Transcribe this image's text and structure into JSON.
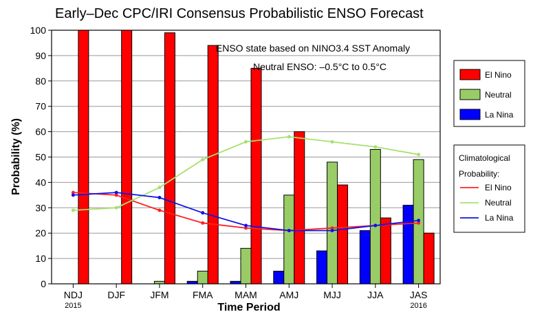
{
  "chart_data": {
    "type": "bar",
    "title": "Early–Dec CPC/IRI Consensus Probabilistic ENSO Forecast",
    "xlabel": "Time Period",
    "ylabel": "Probability (%)",
    "ylim": [
      0,
      100
    ],
    "yticks": [
      0,
      10,
      20,
      30,
      40,
      50,
      60,
      70,
      80,
      90,
      100
    ],
    "categories": [
      "NDJ",
      "DJF",
      "JFM",
      "FMA",
      "MAM",
      "AMJ",
      "MJJ",
      "JJA",
      "JAS"
    ],
    "year_labels": {
      "start": "2015",
      "end": "2016"
    },
    "annotation_line1": "ENSO state based on NINO3.4 SST Anomaly",
    "annotation_line2": "Neutral ENSO: –0.5°C to 0.5°C",
    "series": [
      {
        "name": "La Nina",
        "color": "#0000ff",
        "values": [
          0,
          0,
          0,
          1,
          1,
          5,
          13,
          21,
          31
        ]
      },
      {
        "name": "Neutral",
        "color": "#99cc66",
        "values": [
          0,
          0,
          1,
          5,
          14,
          35,
          48,
          53,
          49
        ]
      },
      {
        "name": "El Nino",
        "color": "#ff0000",
        "values": [
          100,
          100,
          99,
          94,
          85,
          60,
          39,
          26,
          20
        ]
      }
    ],
    "climatology": {
      "title_line1": "Climatological",
      "title_line2": "Probability:",
      "series": [
        {
          "name": "El Nino",
          "color": "#ff2020",
          "values": [
            36,
            35,
            29,
            24,
            22,
            21,
            22,
            23,
            24
          ]
        },
        {
          "name": "Neutral",
          "color": "#a8e070",
          "values": [
            29,
            30,
            38,
            49,
            56,
            58,
            56,
            54,
            51
          ]
        },
        {
          "name": "La Nina",
          "color": "#1010ee",
          "values": [
            35,
            36,
            34,
            28,
            23,
            21,
            21,
            23,
            25
          ]
        }
      ]
    },
    "legend_position": "right",
    "grid": true
  }
}
